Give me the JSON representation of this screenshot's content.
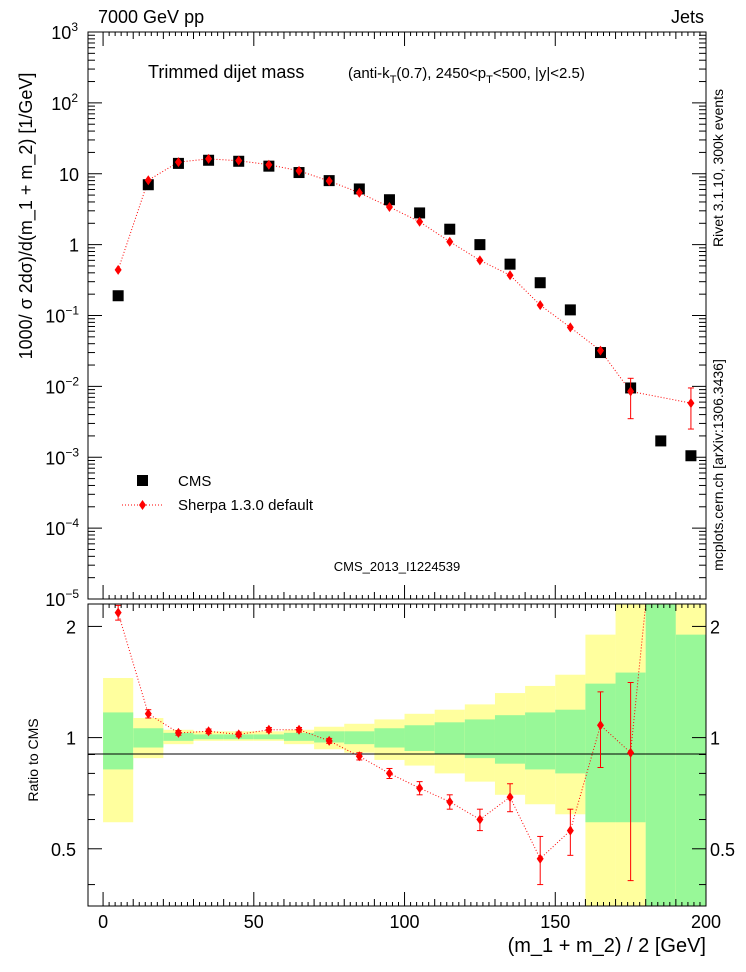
{
  "header": {
    "left_label": "7000 GeV pp",
    "right_label": "Jets"
  },
  "side_text": {
    "rivet": "Rivet 3.1.10,  300k events",
    "mcplots": "mcplots.cern.ch [arXiv:1306.3436]"
  },
  "chart_data": [
    {
      "type": "scatter",
      "panel": "main",
      "title": "Trimmed dijet mass",
      "subtitle": "(anti-kT(0.7), 2450<pT<500, |y|<2.5)",
      "watermark": "CMS_2013_I1224539",
      "ylabel": "1000/ σ 2dσ)/d(m_1 + m_2) [1/GeV]",
      "yscale": "log",
      "ylim": [
        1e-05,
        1000
      ],
      "xlim": [
        -5,
        200
      ],
      "legend_position": "bottom-left",
      "y_ticks": [
        {
          "value": 1000,
          "label": "10",
          "exp": "3"
        },
        {
          "value": 100,
          "label": "10",
          "exp": "2"
        },
        {
          "value": 10,
          "label": "10",
          "exp": ""
        },
        {
          "value": 1,
          "label": "1",
          "exp": ""
        },
        {
          "value": 0.1,
          "label": "10",
          "exp": "−1"
        },
        {
          "value": 0.01,
          "label": "10",
          "exp": "−2"
        },
        {
          "value": 0.001,
          "label": "10",
          "exp": "−3"
        },
        {
          "value": 0.0001,
          "label": "10",
          "exp": "−4"
        },
        {
          "value": 1e-05,
          "label": "10",
          "exp": "−5"
        }
      ],
      "series": [
        {
          "name": "CMS",
          "color": "#000000",
          "marker": "square",
          "x": [
            5,
            15,
            25,
            35,
            45,
            55,
            65,
            75,
            85,
            95,
            105,
            115,
            125,
            135,
            145,
            155,
            165,
            175,
            185,
            195
          ],
          "y": [
            0.19,
            7.0,
            14.0,
            15.5,
            15.0,
            12.8,
            10.4,
            8.0,
            6.1,
            4.3,
            2.8,
            1.65,
            1.0,
            0.53,
            0.29,
            0.12,
            0.03,
            0.0095,
            0.0017,
            0.00105
          ]
        },
        {
          "name": "Sherpa 1.3.0 default",
          "color": "#ff0000",
          "marker": "diamond",
          "x": [
            5,
            15,
            25,
            35,
            45,
            55,
            65,
            75,
            85,
            95,
            105,
            115,
            125,
            135,
            145,
            155,
            165,
            175,
            195
          ],
          "y": [
            0.44,
            8.1,
            14.6,
            16.2,
            15.3,
            13.4,
            11.0,
            7.9,
            5.4,
            3.4,
            2.1,
            1.1,
            0.6,
            0.37,
            0.14,
            0.068,
            0.032,
            0.0085,
            0.0058
          ]
        }
      ]
    },
    {
      "type": "scatter",
      "panel": "ratio",
      "ylabel": "Ratio to CMS",
      "xlabel": "(m_1 + m_2) / 2 [GeV]",
      "ylim": [
        0.35,
        2.3
      ],
      "xlim": [
        -5,
        200
      ],
      "x_ticks": [
        0,
        50,
        100,
        150,
        200
      ],
      "y_ticks": [
        0.5,
        1,
        2
      ],
      "bands": {
        "bin_edges": [
          0,
          10,
          20,
          30,
          40,
          50,
          60,
          70,
          80,
          90,
          100,
          110,
          120,
          130,
          140,
          150,
          160,
          170,
          180,
          190,
          200
        ],
        "green_low": [
          0.82,
          0.94,
          0.98,
          0.99,
          0.99,
          0.99,
          0.98,
          0.97,
          0.96,
          0.94,
          0.92,
          0.9,
          0.88,
          0.85,
          0.82,
          0.8,
          0.59,
          0.59,
          0.35,
          0.35
        ],
        "green_high": [
          1.17,
          1.06,
          1.03,
          1.02,
          1.02,
          1.02,
          1.03,
          1.04,
          1.04,
          1.06,
          1.08,
          1.1,
          1.12,
          1.15,
          1.17,
          1.19,
          1.4,
          1.5,
          2.3,
          1.9
        ],
        "yellow_low": [
          0.59,
          0.88,
          0.96,
          0.98,
          0.98,
          0.98,
          0.96,
          0.93,
          0.91,
          0.87,
          0.84,
          0.8,
          0.76,
          0.7,
          0.66,
          0.62,
          0.35,
          0.35,
          0.35,
          0.35
        ],
        "yellow_high": [
          1.45,
          1.13,
          1.05,
          1.04,
          1.04,
          1.04,
          1.05,
          1.07,
          1.09,
          1.12,
          1.16,
          1.19,
          1.23,
          1.32,
          1.38,
          1.48,
          1.9,
          2.3,
          2.3,
          2.3
        ],
        "green_color": "#98f898",
        "yellow_color": "#ffff9e"
      },
      "series": [
        {
          "name": "Sherpa 1.3.0 default / CMS",
          "color": "#ff0000",
          "x": [
            5,
            15,
            25,
            35,
            45,
            55,
            65,
            75,
            85,
            95,
            105,
            115,
            125,
            135,
            145,
            155,
            165,
            175,
            180
          ],
          "y": [
            2.18,
            1.16,
            1.03,
            1.04,
            1.02,
            1.05,
            1.05,
            0.98,
            0.89,
            0.8,
            0.73,
            0.67,
            0.6,
            0.69,
            0.47,
            0.56,
            1.08,
            0.91,
            2.3
          ],
          "err": [
            0.1,
            0.03,
            0.015,
            0.015,
            0.015,
            0.015,
            0.015,
            0.015,
            0.02,
            0.025,
            0.03,
            0.03,
            0.04,
            0.06,
            0.07,
            0.08,
            0.25,
            0.5,
            0
          ],
          "err_mask": [
            1,
            1,
            1,
            1,
            1,
            1,
            1,
            1,
            1,
            1,
            1,
            1,
            1,
            1,
            1,
            1,
            1,
            1,
            0
          ]
        }
      ]
    }
  ]
}
